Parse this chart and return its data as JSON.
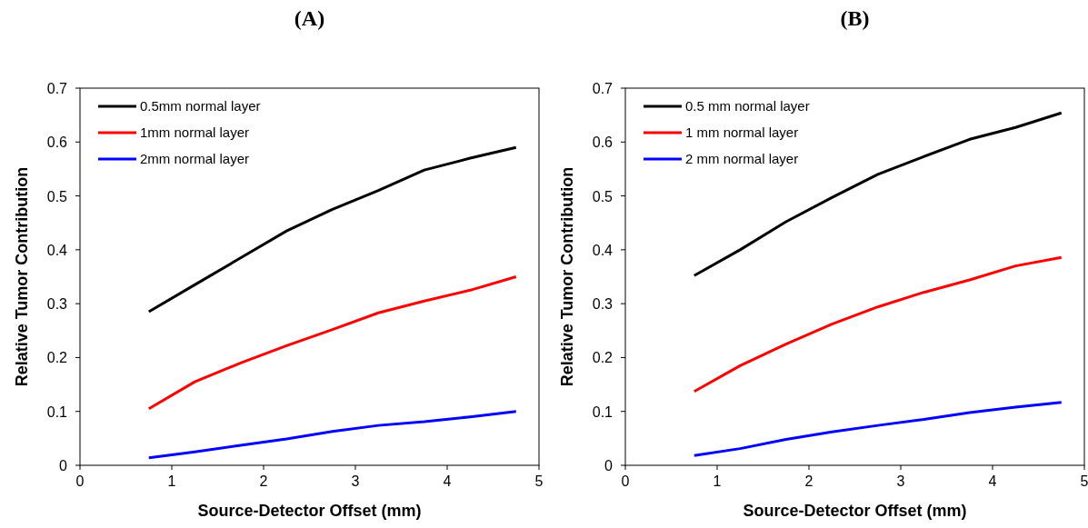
{
  "chart_data": [
    {
      "type": "line",
      "title": "(A)",
      "xlabel": "Source-Detector Offset (mm)",
      "ylabel": "Relative Tumor Contribution",
      "x": [
        0.75,
        1.25,
        1.75,
        2.25,
        2.75,
        3.25,
        3.75,
        4.25,
        4.75
      ],
      "xlim": [
        0,
        5
      ],
      "xticks": [
        0,
        1,
        2,
        3,
        4,
        5
      ],
      "ylim": [
        0,
        0.7
      ],
      "yticks": [
        0,
        0.1,
        0.2,
        0.3,
        0.4,
        0.5,
        0.6,
        0.7
      ],
      "legend": "top left",
      "grid": false,
      "marker": "none",
      "line_style": "solid",
      "series": [
        {
          "name": "0.5mm normal layer",
          "color": "#000000",
          "values": [
            0.285,
            0.335,
            0.385,
            0.435,
            0.475,
            0.51,
            0.548,
            0.57,
            0.59
          ]
        },
        {
          "name": "1mm normal layer",
          "color": "#ff0000",
          "values": [
            0.105,
            0.155,
            0.19,
            0.222,
            0.252,
            0.283,
            0.305,
            0.325,
            0.35
          ]
        },
        {
          "name": "2mm normal layer",
          "color": "#0000ff",
          "values": [
            0.014,
            0.025,
            0.037,
            0.049,
            0.063,
            0.074,
            0.081,
            0.09,
            0.1
          ]
        }
      ]
    },
    {
      "type": "line",
      "title": "(B)",
      "xlabel": "Source-Detector Offset (mm)",
      "ylabel": "Relative Tumor Contribution",
      "x": [
        0.75,
        1.25,
        1.75,
        2.25,
        2.75,
        3.25,
        3.75,
        4.25,
        4.75
      ],
      "xlim": [
        0,
        5
      ],
      "xticks": [
        0,
        1,
        2,
        3,
        4,
        5
      ],
      "ylim": [
        0,
        0.7
      ],
      "yticks": [
        0,
        0.1,
        0.2,
        0.3,
        0.4,
        0.5,
        0.6,
        0.7
      ],
      "legend": "top left",
      "grid": false,
      "marker": "none",
      "line_style": "solid",
      "series": [
        {
          "name": "0.5 mm normal layer",
          "color": "#000000",
          "values": [
            0.352,
            0.4,
            0.452,
            0.497,
            0.54,
            0.573,
            0.605,
            0.627,
            0.654
          ]
        },
        {
          "name": "1 mm normal layer",
          "color": "#ff0000",
          "values": [
            0.137,
            0.185,
            0.225,
            0.262,
            0.294,
            0.321,
            0.344,
            0.37,
            0.386
          ]
        },
        {
          "name": "2 mm normal layer",
          "color": "#0000ff",
          "values": [
            0.018,
            0.031,
            0.048,
            0.062,
            0.074,
            0.085,
            0.098,
            0.108,
            0.117
          ]
        }
      ]
    }
  ]
}
